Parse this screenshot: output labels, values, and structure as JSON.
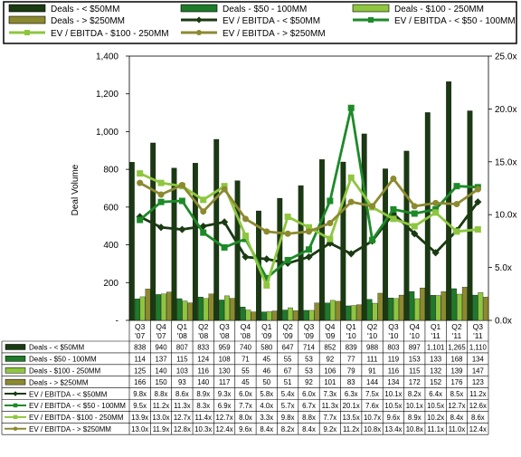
{
  "chart_data": {
    "type": "bar",
    "categories": [
      "Q3 '07",
      "Q4 '07",
      "Q1 '08",
      "Q2 '08",
      "Q3 '08",
      "Q4 '08",
      "Q1 '09",
      "Q2 '09",
      "Q3 '09",
      "Q4 '09",
      "Q1 '10",
      "Q2 '10",
      "Q3 '10",
      "Q4 '10",
      "Q1 '11",
      "Q2 '11",
      "Q3 '11"
    ],
    "ylabel": "Deal Volume",
    "ylim": [
      0,
      1400
    ],
    "y_ticks": [
      "-",
      "200",
      "400",
      "600",
      "800",
      "1,000",
      "1,200",
      "1,400"
    ],
    "y2lim": [
      0,
      25
    ],
    "y2_ticks": [
      "0.0x",
      "5.0x",
      "10.0x",
      "15.0x",
      "20.0x",
      "25.0x"
    ],
    "grid": false,
    "legend_position": "top",
    "bar_series": [
      {
        "name": "Deals - < $50MM",
        "color": "#1a3a12",
        "values": [
          838,
          940,
          807,
          833,
          959,
          740,
          580,
          647,
          714,
          852,
          839,
          988,
          803,
          897,
          1101,
          1265,
          1110
        ],
        "labels": [
          "838",
          "940",
          "807",
          "833",
          "959",
          "740",
          "580",
          "647",
          "714",
          "852",
          "839",
          "988",
          "803",
          "897",
          "1,101",
          "1,265",
          "1,110"
        ]
      },
      {
        "name": "Deals - $50 - 100MM",
        "color": "#1d7a28",
        "values": [
          114,
          137,
          115,
          124,
          108,
          71,
          45,
          55,
          53,
          92,
          77,
          111,
          119,
          153,
          133,
          168,
          134
        ],
        "labels": [
          "114",
          "137",
          "115",
          "124",
          "108",
          "71",
          "45",
          "55",
          "53",
          "92",
          "77",
          "111",
          "119",
          "153",
          "133",
          "168",
          "134"
        ]
      },
      {
        "name": "Deals - $100 - 250MM",
        "color": "#8ec63f",
        "values": [
          125,
          140,
          103,
          116,
          130,
          55,
          46,
          67,
          53,
          106,
          79,
          91,
          116,
          115,
          132,
          139,
          147
        ],
        "labels": [
          "125",
          "140",
          "103",
          "116",
          "130",
          "55",
          "46",
          "67",
          "53",
          "106",
          "79",
          "91",
          "116",
          "115",
          "132",
          "139",
          "147"
        ]
      },
      {
        "name": "Deals - > $250MM",
        "color": "#8c8a30",
        "values": [
          166,
          150,
          93,
          140,
          117,
          45,
          50,
          51,
          92,
          101,
          83,
          144,
          134,
          172,
          152,
          176,
          123
        ],
        "labels": [
          "166",
          "150",
          "93",
          "140",
          "117",
          "45",
          "50",
          "51",
          "92",
          "101",
          "83",
          "144",
          "134",
          "172",
          "152",
          "176",
          "123"
        ]
      }
    ],
    "line_series": [
      {
        "name": "EV / EBITDA - < $50MM",
        "color": "#1a3a12",
        "marker": "diamond",
        "values": [
          9.8,
          8.8,
          8.6,
          8.9,
          9.3,
          6.0,
          5.8,
          5.4,
          6.0,
          7.3,
          6.3,
          7.5,
          10.1,
          8.2,
          6.4,
          8.5,
          11.2
        ],
        "labels": [
          "9.8x",
          "8.8x",
          "8.6x",
          "8.9x",
          "9.3x",
          "6.0x",
          "5.8x",
          "5.4x",
          "6.0x",
          "7.3x",
          "6.3x",
          "7.5x",
          "10.1x",
          "8.2x",
          "6.4x",
          "8.5x",
          "11.2x"
        ]
      },
      {
        "name": "EV / EBITDA - < $50 - 100MM",
        "color": "#1d8a28",
        "marker": "square",
        "values": [
          9.5,
          11.2,
          11.3,
          8.3,
          6.9,
          7.7,
          4.0,
          5.7,
          6.7,
          11.3,
          20.1,
          7.6,
          10.5,
          10.1,
          10.5,
          12.7,
          12.6
        ],
        "labels": [
          "9.5x",
          "11.2x",
          "11.3x",
          "8.3x",
          "6.9x",
          "7.7x",
          "4.0x",
          "5.7x",
          "6.7x",
          "11.3x",
          "20.1x",
          "7.6x",
          "10.5x",
          "10.1x",
          "10.5x",
          "12.7x",
          "12.6x"
        ]
      },
      {
        "name": "EV / EBITDA - $100 - 250MM",
        "color": "#8ec63f",
        "marker": "square",
        "values": [
          13.9,
          13.0,
          12.7,
          11.4,
          12.7,
          8.0,
          3.3,
          9.8,
          8.8,
          7.7,
          13.5,
          10.7,
          9.6,
          8.9,
          10.2,
          8.4,
          8.6
        ],
        "labels": [
          "13.9x",
          "13.0x",
          "12.7x",
          "11.4x",
          "12.7x",
          "8.0x",
          "3.3x",
          "9.8x",
          "8.8x",
          "7.7x",
          "13.5x",
          "10.7x",
          "9.6x",
          "8.9x",
          "10.2x",
          "8.4x",
          "8.6x"
        ]
      },
      {
        "name": "EV / EBITDA - > $250MM",
        "color": "#8c8a30",
        "marker": "circle",
        "values": [
          13.0,
          11.9,
          12.8,
          10.3,
          12.4,
          9.6,
          8.4,
          8.2,
          8.4,
          9.2,
          11.2,
          10.8,
          13.4,
          10.8,
          11.1,
          11.0,
          12.4
        ],
        "labels": [
          "13.0x",
          "11.9x",
          "12.8x",
          "10.3x",
          "12.4x",
          "9.6x",
          "8.4x",
          "8.2x",
          "8.4x",
          "9.2x",
          "11.2x",
          "10.8x",
          "13.4x",
          "10.8x",
          "11.1x",
          "11.0x",
          "12.4x"
        ]
      }
    ]
  }
}
